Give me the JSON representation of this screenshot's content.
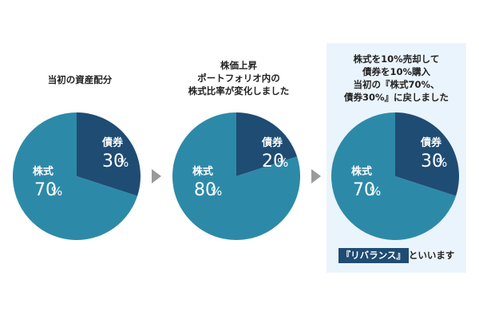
{
  "colors": {
    "bond": "#1f4c73",
    "stock": "#2c8aa8",
    "highlight_bg": "#eaf4fc",
    "arrow": "#9a9a9a"
  },
  "captions": [
    {
      "lines": [
        "当初の資産配分"
      ]
    },
    {
      "lines": [
        "株価上昇",
        "ポートフォリオ内の",
        "株式比率が変化しました"
      ]
    },
    {
      "lines": [
        "株式を10%売却して",
        "債券を10%購入",
        "当初の『株式70%、",
        "債券30%』に戻しました"
      ]
    }
  ],
  "footer": {
    "term": "『リバランス』",
    "suffix": "といいます"
  },
  "chart_data": [
    {
      "type": "pie",
      "categories": [
        "債券",
        "株式"
      ],
      "values": [
        30,
        70
      ],
      "labels": [
        {
          "name": "債券",
          "num": "30",
          "unit": "%"
        },
        {
          "name": "株式",
          "num": "70",
          "unit": "%"
        }
      ]
    },
    {
      "type": "pie",
      "categories": [
        "債券",
        "株式"
      ],
      "values": [
        20,
        80
      ],
      "labels": [
        {
          "name": "債券",
          "num": "20",
          "unit": "%"
        },
        {
          "name": "株式",
          "num": "80",
          "unit": "%"
        }
      ]
    },
    {
      "type": "pie",
      "categories": [
        "債券",
        "株式"
      ],
      "values": [
        30,
        70
      ],
      "labels": [
        {
          "name": "債券",
          "num": "30",
          "unit": "%"
        },
        {
          "name": "株式",
          "num": "70",
          "unit": "%"
        }
      ]
    }
  ]
}
